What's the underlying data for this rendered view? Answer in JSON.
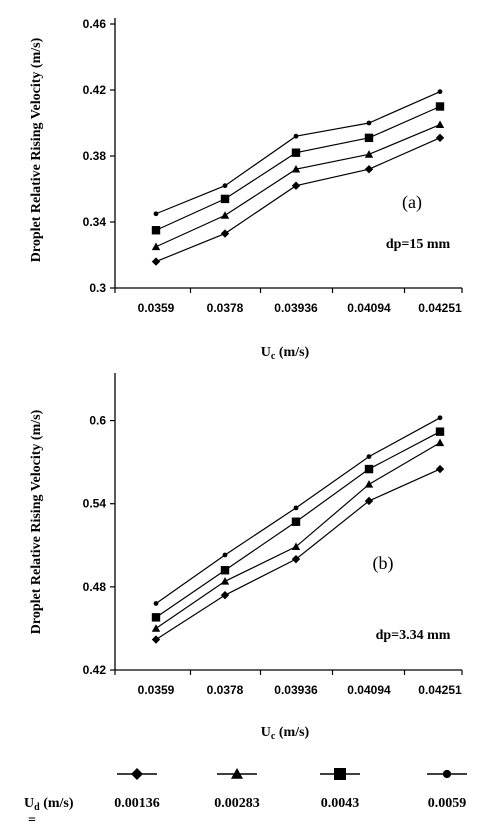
{
  "chart_data": [
    {
      "type": "line",
      "panel_label": "(a)",
      "annotation": "dp=15 mm",
      "xlabel_main": "U",
      "xlabel_sub": "c",
      "xlabel_unit": " (m/s)",
      "ylabel": "Droplet Relative Rising Velocity (m/s)",
      "categories": [
        "0.0359",
        "0.0378",
        "0.03936",
        "0.04094",
        "0.04251"
      ],
      "ylim": [
        0.3,
        0.46
      ],
      "yticks": [
        0.3,
        0.34,
        0.38,
        0.42,
        0.46
      ],
      "ytick_labels": [
        "0.3",
        "0.34",
        "0.38",
        "0.42",
        "0.46"
      ],
      "series": [
        {
          "name": "0.00136",
          "marker": "diamond",
          "values": [
            0.316,
            0.333,
            0.362,
            0.372,
            0.391
          ]
        },
        {
          "name": "0.00283",
          "marker": "triangle",
          "values": [
            0.325,
            0.344,
            0.372,
            0.381,
            0.399
          ]
        },
        {
          "name": "0.0043",
          "marker": "square",
          "values": [
            0.335,
            0.354,
            0.382,
            0.391,
            0.41
          ]
        },
        {
          "name": "0.0059",
          "marker": "circle",
          "values": [
            0.345,
            0.362,
            0.392,
            0.4,
            0.419
          ]
        }
      ]
    },
    {
      "type": "line",
      "panel_label": "(b)",
      "annotation": "dp=3.34 mm",
      "xlabel_main": "U",
      "xlabel_sub": "c",
      "xlabel_unit": " (m/s)",
      "ylabel": "Droplet Relative Rising Velocity (m/s)",
      "categories": [
        "0.0359",
        "0.0378",
        "0.03936",
        "0.04094",
        "0.04251"
      ],
      "ylim": [
        0.42,
        0.63
      ],
      "yticks": [
        0.42,
        0.48,
        0.54,
        0.6
      ],
      "ytick_labels": [
        "0.42",
        "0.48",
        "0.54",
        "0.6"
      ],
      "series": [
        {
          "name": "0.00136",
          "marker": "diamond",
          "values": [
            0.442,
            0.474,
            0.5,
            0.542,
            0.565
          ]
        },
        {
          "name": "0.00283",
          "marker": "triangle",
          "values": [
            0.45,
            0.484,
            0.509,
            0.554,
            0.584
          ]
        },
        {
          "name": "0.0043",
          "marker": "square",
          "values": [
            0.458,
            0.492,
            0.527,
            0.565,
            0.592
          ]
        },
        {
          "name": "0.0059",
          "marker": "circle",
          "values": [
            0.468,
            0.503,
            0.537,
            0.574,
            0.602
          ]
        }
      ]
    }
  ],
  "legend": {
    "title_main": "U",
    "title_sub": "d",
    "title_unit": " (m/s)",
    "title_mark": "=",
    "items": [
      {
        "label": "0.00136",
        "marker": "diamond"
      },
      {
        "label": "0.00283",
        "marker": "triangle"
      },
      {
        "label": "0.0043",
        "marker": "square"
      },
      {
        "label": "0.0059",
        "marker": "circle"
      }
    ]
  }
}
